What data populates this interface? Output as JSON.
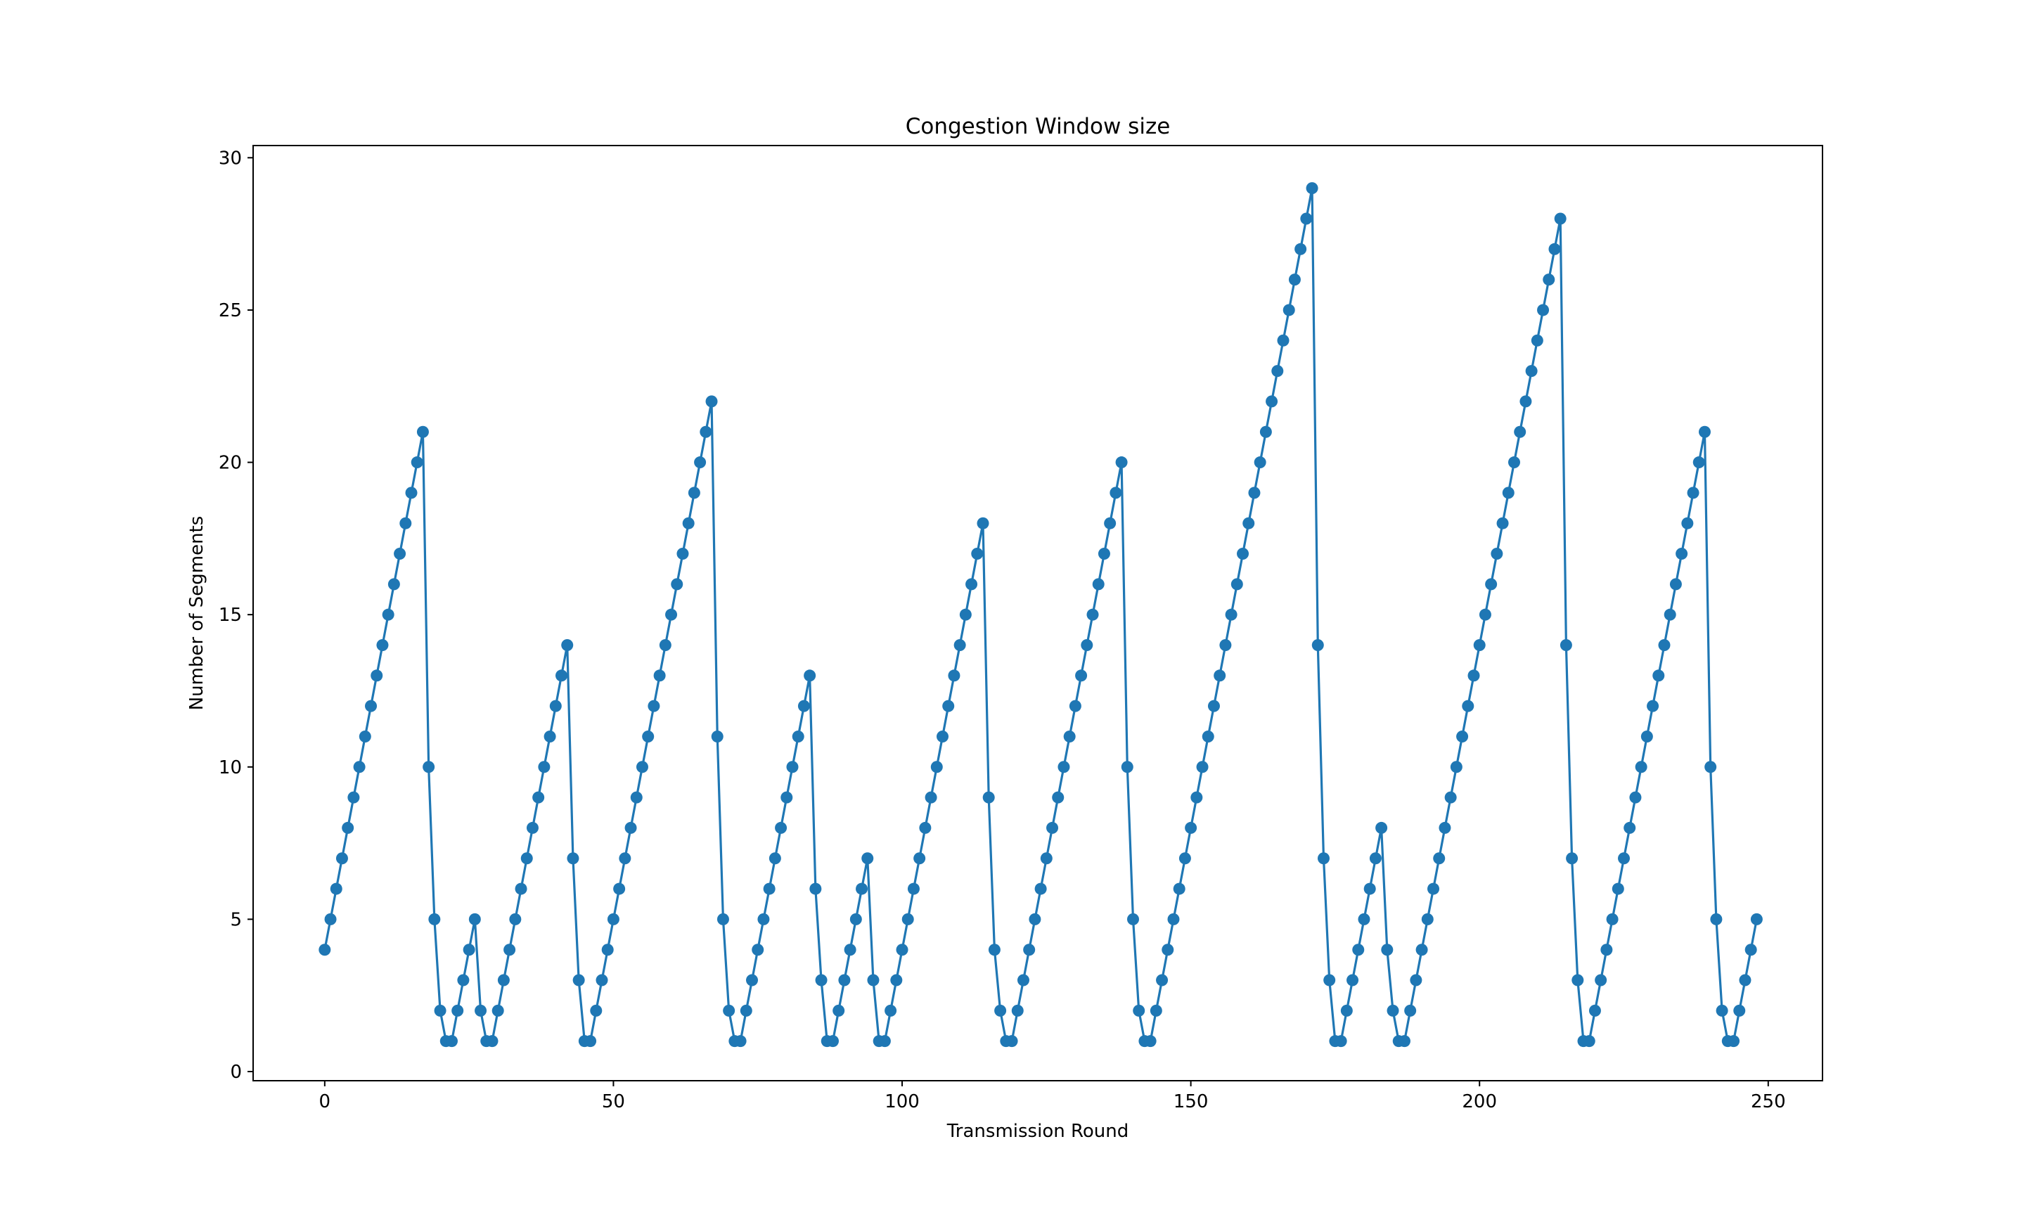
{
  "chart_data": {
    "type": "line",
    "title": "Congestion Window size",
    "xlabel": "Transmission Round",
    "ylabel": "Number of Segments",
    "xlim": [
      -12.4,
      259.4
    ],
    "ylim": [
      -0.3,
      30.4
    ],
    "xticks": [
      0,
      50,
      100,
      150,
      200,
      250
    ],
    "yticks": [
      0,
      5,
      10,
      15,
      20,
      25,
      30
    ],
    "grid": false,
    "legend": "none",
    "marker": "circle",
    "series": [
      {
        "color": "#1f77b4",
        "x_start": 0,
        "x_step": 1,
        "values": [
          4,
          5,
          6,
          7,
          8,
          9,
          10,
          11,
          12,
          13,
          14,
          15,
          16,
          17,
          18,
          19,
          20,
          21,
          10,
          5,
          2,
          1,
          1,
          2,
          3,
          4,
          5,
          2,
          1,
          1,
          2,
          3,
          4,
          5,
          6,
          7,
          8,
          9,
          10,
          11,
          12,
          13,
          14,
          7,
          3,
          1,
          1,
          2,
          3,
          4,
          5,
          6,
          7,
          8,
          9,
          10,
          11,
          12,
          13,
          14,
          15,
          16,
          17,
          18,
          19,
          20,
          21,
          22,
          11,
          5,
          2,
          1,
          1,
          2,
          3,
          4,
          5,
          6,
          7,
          8,
          9,
          10,
          11,
          12,
          13,
          6,
          3,
          1,
          1,
          2,
          3,
          4,
          5,
          6,
          7,
          3,
          1,
          1,
          2,
          3,
          4,
          5,
          6,
          7,
          8,
          9,
          10,
          11,
          12,
          13,
          14,
          15,
          16,
          17,
          18,
          9,
          4,
          2,
          1,
          1,
          2,
          3,
          4,
          5,
          6,
          7,
          8,
          9,
          10,
          11,
          12,
          13,
          14,
          15,
          16,
          17,
          18,
          19,
          20,
          10,
          5,
          2,
          1,
          1,
          2,
          3,
          4,
          5,
          6,
          7,
          8,
          9,
          10,
          11,
          12,
          13,
          14,
          15,
          16,
          17,
          18,
          19,
          20,
          21,
          22,
          23,
          24,
          25,
          26,
          27,
          28,
          29,
          14,
          7,
          3,
          1,
          1,
          2,
          3,
          4,
          5,
          6,
          7,
          8,
          4,
          2,
          1,
          1,
          2,
          3,
          4,
          5,
          6,
          7,
          8,
          9,
          10,
          11,
          12,
          13,
          14,
          15,
          16,
          17,
          18,
          19,
          20,
          21,
          22,
          23,
          24,
          25,
          26,
          27,
          28,
          14,
          7,
          3,
          1,
          1,
          2,
          3,
          4,
          5,
          6,
          7,
          8,
          9,
          10,
          11,
          12,
          13,
          14,
          15,
          16,
          17,
          18,
          19,
          20,
          21,
          10,
          5,
          2,
          1,
          1,
          2,
          3,
          4,
          5
        ]
      }
    ]
  }
}
